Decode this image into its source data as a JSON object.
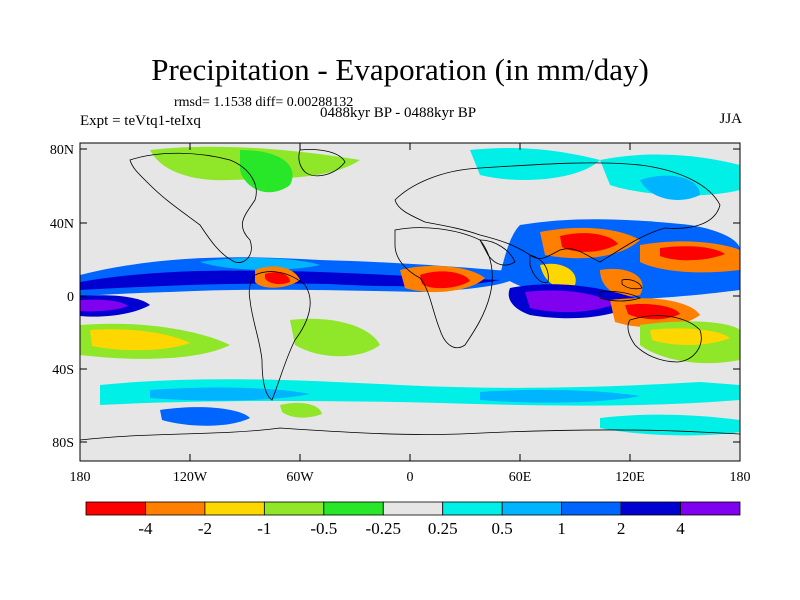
{
  "title": "Precipitation - Evaporation (in mm/day)",
  "stats": "rmsd= 1.1538 diff= 0.00288132",
  "experiment": "Expt = teVtq1-teIxq",
  "period": "0488kyr BP - 0488kyr BP",
  "season": "JJA",
  "axes": {
    "y_ticks": [
      "80N",
      "40N",
      "0",
      "40S",
      "80S"
    ],
    "x_ticks": [
      "180",
      "120W",
      "60W",
      "0",
      "60E",
      "120E",
      "180"
    ]
  },
  "colorbar": {
    "colors": [
      "#ff0000",
      "#ff8000",
      "#ffd700",
      "#90e628",
      "#28e628",
      "#e6e6e6",
      "#00f0e8",
      "#00b4ff",
      "#0064ff",
      "#0000d0",
      "#8000f0"
    ],
    "labels": [
      "-4",
      "-2",
      "-1",
      "-0.5",
      "-0.25",
      "0.25",
      "0.5",
      "1",
      "2",
      "4"
    ]
  }
}
